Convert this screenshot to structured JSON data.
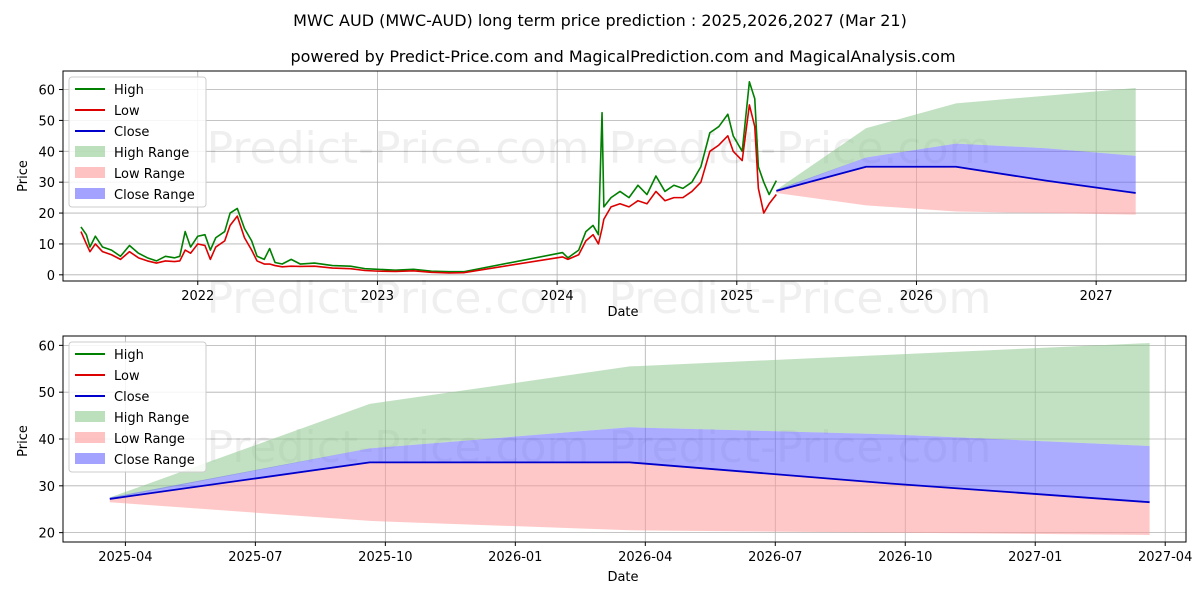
{
  "title": "MWC AUD (MWC-AUD) long term price prediction : 2025,2026,2027 (Mar 21)",
  "subtitle": "powered by Predict-Price.com and MagicalPrediction.com and MagicalAnalysis.com",
  "watermark": "Predict-Price.com",
  "colors": {
    "high": "#008000",
    "low": "#dd0000",
    "close": "#0000cc",
    "high_range": "#8fc98f",
    "low_range": "#ff9a9a",
    "close_range": "#6666ff"
  },
  "chart_data": [
    {
      "type": "line",
      "xlabel": "Date",
      "ylabel": "Price",
      "xlim": [
        2021.25,
        2027.5
      ],
      "ylim": [
        -2,
        66
      ],
      "yticks": [
        0,
        10,
        20,
        30,
        40,
        50,
        60
      ],
      "xticks": [
        {
          "v": 2022.0,
          "label": "2022"
        },
        {
          "v": 2023.0,
          "label": "2023"
        },
        {
          "v": 2024.0,
          "label": "2024"
        },
        {
          "v": 2025.0,
          "label": "2025"
        },
        {
          "v": 2026.0,
          "label": "2026"
        },
        {
          "v": 2027.0,
          "label": "2027"
        }
      ],
      "legend": [
        "High",
        "Low",
        "Close",
        "High Range",
        "Low Range",
        "Close Range"
      ],
      "legend_position": "top-left",
      "history_high": [
        [
          2021.35,
          15.5
        ],
        [
          2021.38,
          13
        ],
        [
          2021.4,
          9
        ],
        [
          2021.43,
          12.5
        ],
        [
          2021.47,
          9
        ],
        [
          2021.52,
          8
        ],
        [
          2021.57,
          6
        ],
        [
          2021.62,
          9.5
        ],
        [
          2021.67,
          7
        ],
        [
          2021.72,
          5.5
        ],
        [
          2021.77,
          4.5
        ],
        [
          2021.82,
          6
        ],
        [
          2021.87,
          5.5
        ],
        [
          2021.9,
          6
        ],
        [
          2021.93,
          14
        ],
        [
          2021.96,
          9
        ],
        [
          2022.0,
          12.5
        ],
        [
          2022.04,
          13
        ],
        [
          2022.07,
          8
        ],
        [
          2022.1,
          12
        ],
        [
          2022.15,
          14
        ],
        [
          2022.18,
          20
        ],
        [
          2022.22,
          21.5
        ],
        [
          2022.26,
          15
        ],
        [
          2022.3,
          11
        ],
        [
          2022.33,
          6
        ],
        [
          2022.37,
          5
        ],
        [
          2022.4,
          8.5
        ],
        [
          2022.43,
          4
        ],
        [
          2022.47,
          3.5
        ],
        [
          2022.52,
          5
        ],
        [
          2022.57,
          3.5
        ],
        [
          2022.65,
          3.8
        ],
        [
          2022.75,
          3
        ],
        [
          2022.85,
          2.8
        ],
        [
          2022.93,
          2
        ],
        [
          2023.0,
          1.8
        ],
        [
          2023.1,
          1.5
        ],
        [
          2023.2,
          1.8
        ],
        [
          2023.3,
          1.2
        ],
        [
          2023.4,
          1.0
        ],
        [
          2023.48,
          1.0
        ],
        [
          2024.03,
          7.2
        ],
        [
          2024.06,
          5.5
        ],
        [
          2024.12,
          8
        ],
        [
          2024.16,
          14
        ],
        [
          2024.2,
          16
        ],
        [
          2024.23,
          13
        ],
        [
          2024.25,
          52.5
        ],
        [
          2024.26,
          22
        ],
        [
          2024.3,
          25
        ],
        [
          2024.35,
          27
        ],
        [
          2024.4,
          25
        ],
        [
          2024.45,
          29
        ],
        [
          2024.5,
          26
        ],
        [
          2024.55,
          32
        ],
        [
          2024.6,
          27
        ],
        [
          2024.65,
          29
        ],
        [
          2024.7,
          28
        ],
        [
          2024.75,
          30
        ],
        [
          2024.8,
          35
        ],
        [
          2024.85,
          46
        ],
        [
          2024.9,
          48
        ],
        [
          2024.95,
          52
        ],
        [
          2024.98,
          45
        ],
        [
          2025.03,
          40
        ],
        [
          2025.07,
          62.5
        ],
        [
          2025.1,
          57
        ],
        [
          2025.12,
          35
        ],
        [
          2025.15,
          30
        ],
        [
          2025.18,
          26
        ],
        [
          2025.22,
          30.5
        ]
      ],
      "history_low": [
        [
          2021.35,
          14
        ],
        [
          2021.38,
          10
        ],
        [
          2021.4,
          7.5
        ],
        [
          2021.43,
          10
        ],
        [
          2021.47,
          7.5
        ],
        [
          2021.52,
          6.5
        ],
        [
          2021.57,
          5
        ],
        [
          2021.62,
          7.5
        ],
        [
          2021.67,
          5.5
        ],
        [
          2021.72,
          4.5
        ],
        [
          2021.77,
          3.8
        ],
        [
          2021.82,
          4.5
        ],
        [
          2021.87,
          4.3
        ],
        [
          2021.9,
          4.5
        ],
        [
          2021.93,
          8
        ],
        [
          2021.96,
          7
        ],
        [
          2022.0,
          10
        ],
        [
          2022.04,
          9.5
        ],
        [
          2022.07,
          5
        ],
        [
          2022.1,
          9
        ],
        [
          2022.15,
          11
        ],
        [
          2022.18,
          16
        ],
        [
          2022.22,
          19
        ],
        [
          2022.26,
          12
        ],
        [
          2022.3,
          8
        ],
        [
          2022.33,
          4.5
        ],
        [
          2022.37,
          3.5
        ],
        [
          2022.4,
          3.5
        ],
        [
          2022.43,
          3
        ],
        [
          2022.47,
          2.6
        ],
        [
          2022.52,
          2.8
        ],
        [
          2022.57,
          2.7
        ],
        [
          2022.65,
          2.8
        ],
        [
          2022.75,
          2.2
        ],
        [
          2022.85,
          2.0
        ],
        [
          2022.93,
          1.4
        ],
        [
          2023.0,
          1.2
        ],
        [
          2023.1,
          1.1
        ],
        [
          2023.2,
          1.3
        ],
        [
          2023.3,
          0.8
        ],
        [
          2023.4,
          0.6
        ],
        [
          2023.48,
          0.7
        ],
        [
          2024.03,
          5.8
        ],
        [
          2024.06,
          5
        ],
        [
          2024.12,
          6.5
        ],
        [
          2024.16,
          11
        ],
        [
          2024.2,
          13
        ],
        [
          2024.23,
          10
        ],
        [
          2024.25,
          15
        ],
        [
          2024.26,
          18
        ],
        [
          2024.3,
          22
        ],
        [
          2024.35,
          23
        ],
        [
          2024.4,
          22
        ],
        [
          2024.45,
          24
        ],
        [
          2024.5,
          23
        ],
        [
          2024.55,
          27
        ],
        [
          2024.6,
          24
        ],
        [
          2024.65,
          25
        ],
        [
          2024.7,
          25
        ],
        [
          2024.75,
          27
        ],
        [
          2024.8,
          30
        ],
        [
          2024.85,
          40
        ],
        [
          2024.9,
          42
        ],
        [
          2024.95,
          45
        ],
        [
          2024.98,
          40
        ],
        [
          2025.03,
          37
        ],
        [
          2025.07,
          55
        ],
        [
          2025.1,
          48
        ],
        [
          2025.12,
          28
        ],
        [
          2025.15,
          20
        ],
        [
          2025.18,
          23
        ],
        [
          2025.22,
          26
        ]
      ],
      "close": [
        [
          2025.22,
          27.2
        ],
        [
          2025.72,
          35
        ],
        [
          2026.22,
          35
        ],
        [
          2026.72,
          30.5
        ],
        [
          2027.22,
          26.5
        ]
      ],
      "high_range": {
        "x": [
          2025.22,
          2025.72,
          2026.22,
          2026.72,
          2027.22
        ],
        "upper": [
          27.5,
          47.5,
          55.5,
          58,
          60.5
        ],
        "lower": [
          27.2,
          38,
          42.5,
          41,
          38.5
        ]
      },
      "low_range": {
        "x": [
          2025.22,
          2025.72,
          2026.22,
          2026.72,
          2027.22
        ],
        "upper": [
          27.2,
          35,
          35,
          30.5,
          26.5
        ],
        "lower": [
          26.5,
          22.5,
          20.5,
          20,
          19.5
        ]
      },
      "close_range": {
        "x": [
          2025.22,
          2025.72,
          2026.22,
          2026.72,
          2027.22
        ],
        "upper": [
          27.5,
          38,
          42.5,
          41,
          38.5
        ],
        "lower": [
          27.2,
          35,
          35,
          30.5,
          26.5
        ]
      }
    },
    {
      "type": "line",
      "xlabel": "Date",
      "ylabel": "Price",
      "xlim": [
        2025.13,
        2027.29
      ],
      "ylim": [
        18,
        62
      ],
      "yticks": [
        20,
        30,
        40,
        50,
        60
      ],
      "xticks": [
        {
          "v": 2025.25,
          "label": "2025-04"
        },
        {
          "v": 2025.5,
          "label": "2025-07"
        },
        {
          "v": 2025.75,
          "label": "2025-10"
        },
        {
          "v": 2026.0,
          "label": "2026-01"
        },
        {
          "v": 2026.25,
          "label": "2026-04"
        },
        {
          "v": 2026.5,
          "label": "2026-07"
        },
        {
          "v": 2026.75,
          "label": "2026-10"
        },
        {
          "v": 2027.0,
          "label": "2027-01"
        },
        {
          "v": 2027.25,
          "label": "2027-04"
        }
      ],
      "legend": [
        "High",
        "Low",
        "Close",
        "High Range",
        "Low Range",
        "Close Range"
      ],
      "legend_position": "top-left",
      "close": [
        [
          2025.22,
          27.2
        ],
        [
          2025.72,
          35
        ],
        [
          2026.22,
          35
        ],
        [
          2026.72,
          30.5
        ],
        [
          2027.22,
          26.5
        ]
      ],
      "high_range": {
        "x": [
          2025.22,
          2025.72,
          2026.22,
          2026.72,
          2027.22
        ],
        "upper": [
          27.5,
          47.5,
          55.5,
          58,
          60.5
        ],
        "lower": [
          27.2,
          38,
          42.5,
          41,
          38.5
        ]
      },
      "low_range": {
        "x": [
          2025.22,
          2025.72,
          2026.22,
          2026.72,
          2027.22
        ],
        "upper": [
          27.2,
          35,
          35,
          30.5,
          26.5
        ],
        "lower": [
          26.5,
          22.5,
          20.5,
          20,
          19.5
        ]
      },
      "close_range": {
        "x": [
          2025.22,
          2025.72,
          2026.22,
          2026.72,
          2027.22
        ],
        "upper": [
          27.5,
          38,
          42.5,
          41,
          38.5
        ],
        "lower": [
          27.2,
          35,
          35,
          30.5,
          26.5
        ]
      }
    }
  ]
}
